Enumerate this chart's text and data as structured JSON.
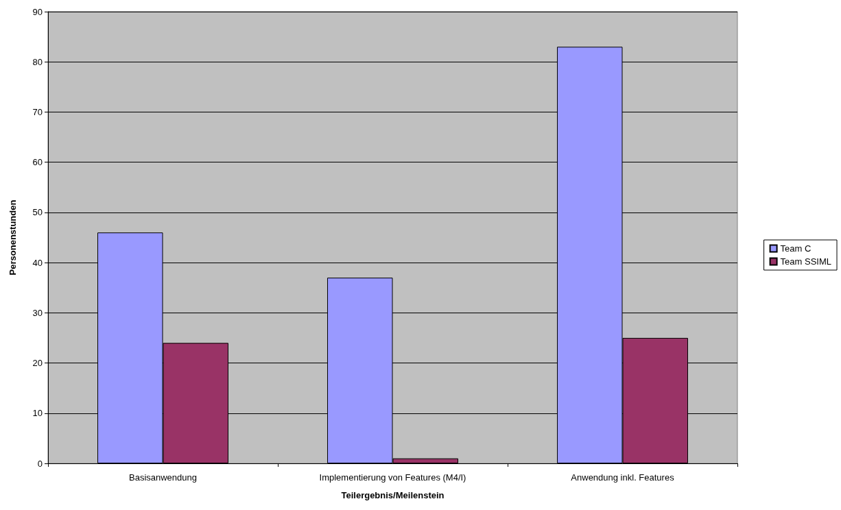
{
  "chart_data": {
    "type": "bar",
    "xlabel": "Teilergebnis/Meilenstein",
    "ylabel": "Personenstunden",
    "categories": [
      "Basisanwendung",
      "Implementierung von Features (M4/I)",
      "Anwendung inkl. Features"
    ],
    "series": [
      {
        "name": "Team C",
        "color": "#9999ff",
        "values": [
          46,
          37,
          83
        ]
      },
      {
        "name": "Team SSIML",
        "color": "#993366",
        "values": [
          24,
          1,
          25
        ]
      }
    ],
    "ylim": [
      0,
      90
    ],
    "yticks": [
      0,
      10,
      20,
      30,
      40,
      50,
      60,
      70,
      80,
      90
    ],
    "grid": "y",
    "legend": "right"
  }
}
